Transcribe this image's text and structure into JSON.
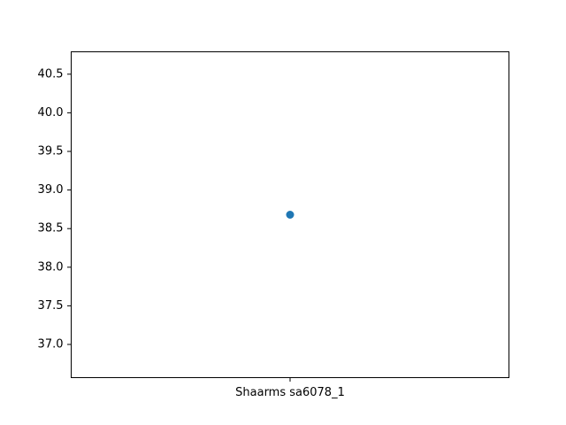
{
  "chart_data": {
    "type": "scatter",
    "title": "",
    "xlabel": "",
    "ylabel": "",
    "categories": [
      "Shaarms sa6078_1"
    ],
    "series": [
      {
        "values": [
          38.68
        ],
        "color": "#1f77b4"
      }
    ],
    "ylim": [
      36.57,
      40.79
    ],
    "yticks": [
      37.0,
      37.5,
      38.0,
      38.5,
      39.0,
      39.5,
      40.0,
      40.5
    ],
    "ytick_labels": [
      "37.0",
      "37.5",
      "38.0",
      "38.5",
      "39.0",
      "39.5",
      "40.0",
      "40.5"
    ],
    "grid": false,
    "legend": "none"
  }
}
